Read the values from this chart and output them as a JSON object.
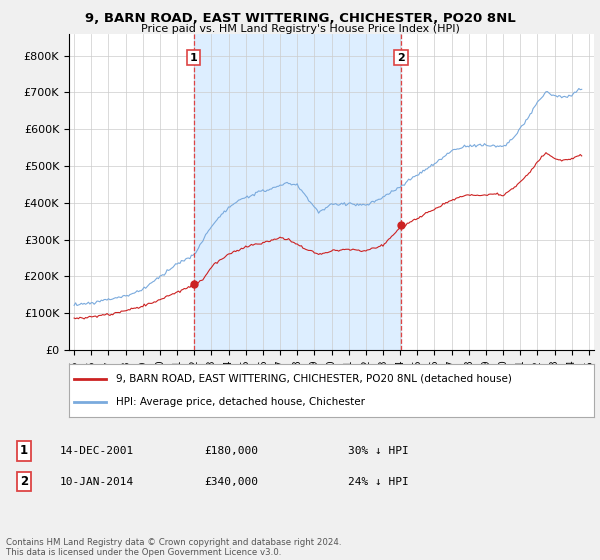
{
  "title": "9, BARN ROAD, EAST WITTERING, CHICHESTER, PO20 8NL",
  "subtitle": "Price paid vs. HM Land Registry's House Price Index (HPI)",
  "footnote": "Contains HM Land Registry data © Crown copyright and database right 2024.\nThis data is licensed under the Open Government Licence v3.0.",
  "ylim": [
    0,
    860000
  ],
  "yticks": [
    0,
    100000,
    200000,
    300000,
    400000,
    500000,
    600000,
    700000,
    800000
  ],
  "ytick_labels": [
    "£0",
    "£100K",
    "£200K",
    "£300K",
    "£400K",
    "£500K",
    "£600K",
    "£700K",
    "£800K"
  ],
  "sale1_x": 2001.958,
  "sale1_price": 180000,
  "sale2_x": 2014.042,
  "sale2_price": 340000,
  "hpi_color": "#7aaadd",
  "price_color": "#cc2222",
  "vline_color": "#dd4444",
  "shade_color": "#ddeeff",
  "background_color": "#f0f0f0",
  "plot_bg": "#ffffff",
  "legend_label_price": "9, BARN ROAD, EAST WITTERING, CHICHESTER, PO20 8NL (detached house)",
  "legend_label_hpi": "HPI: Average price, detached house, Chichester",
  "xlim_left": 1994.7,
  "xlim_right": 2025.3
}
